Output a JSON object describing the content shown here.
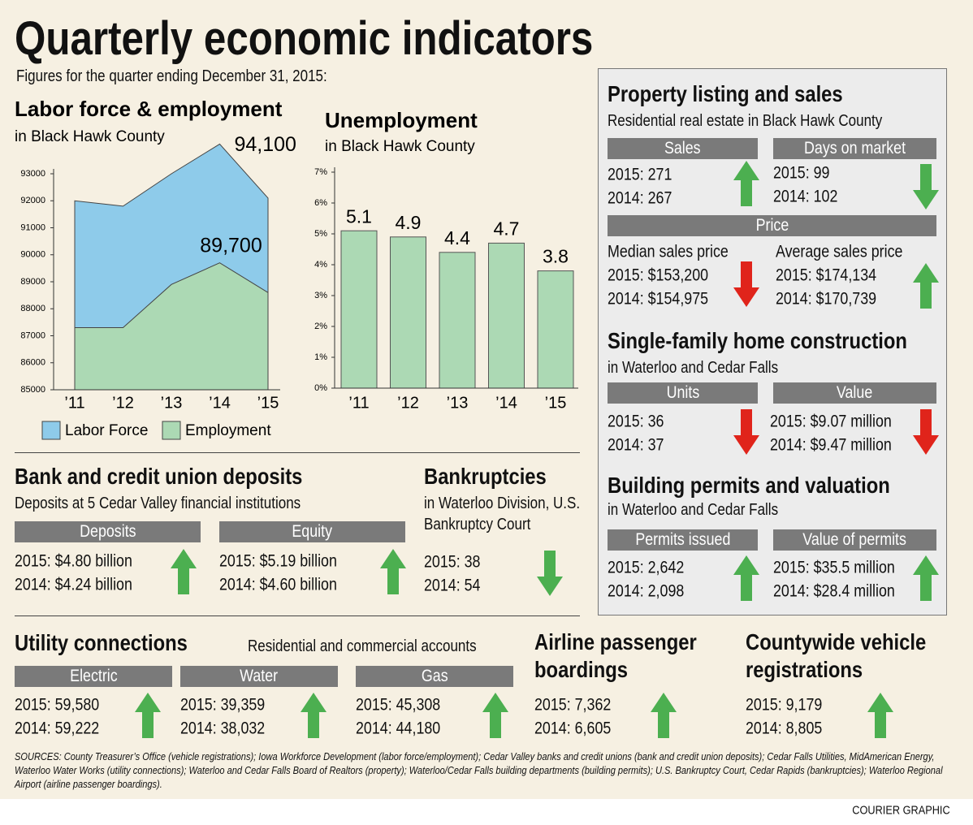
{
  "title": "Quarterly economic indicators",
  "subtitle": "Figures for the quarter ending December 31, 2015:",
  "chart_data": [
    {
      "type": "area",
      "title": "Labor force & employment",
      "subtitle": "in Black Hawk County",
      "categories": [
        "’11",
        "’12",
        "’13",
        "’14",
        "’15"
      ],
      "series": [
        {
          "name": "Labor Force",
          "color": "#8ecbea",
          "values": [
            92000,
            91800,
            93000,
            94100,
            92100
          ],
          "value_labels": [
            null,
            null,
            null,
            "94,100",
            null
          ]
        },
        {
          "name": "Employment",
          "color": "#acd9b4",
          "values": [
            87300,
            87300,
            88900,
            89700,
            88600
          ],
          "value_labels": [
            null,
            null,
            null,
            "89,700",
            null
          ]
        }
      ],
      "ylim": [
        85000,
        93000
      ],
      "yticks": [
        85000,
        86000,
        87000,
        88000,
        89000,
        90000,
        91000,
        92000,
        93000
      ]
    },
    {
      "type": "bar",
      "title": "Unemployment",
      "subtitle": "in Black Hawk County",
      "categories": [
        "’11",
        "’12",
        "’13",
        "’14",
        "’15"
      ],
      "values": [
        5.1,
        4.9,
        4.4,
        4.7,
        3.8
      ],
      "color": "#acd9b4",
      "ylim": [
        0,
        7
      ],
      "yticks": [
        {
          "value": 0,
          "label": "0%"
        },
        {
          "value": 1,
          "label": "1%"
        },
        {
          "value": 2,
          "label": "2%"
        },
        {
          "value": 3,
          "label": "3%"
        },
        {
          "value": 4,
          "label": "4%"
        },
        {
          "value": 5,
          "label": "5%"
        },
        {
          "value": 6,
          "label": "6%"
        },
        {
          "value": 7,
          "label": "7%"
        }
      ]
    }
  ],
  "property": {
    "title": "Property listing and sales",
    "subtitle": "Residential real estate in Black Hawk County",
    "sales": {
      "label": "Sales",
      "lines": [
        "2015: 271",
        "2014: 267"
      ]
    },
    "days": {
      "label": "Days on market",
      "lines": [
        "2015: 99",
        "2014: 102"
      ]
    },
    "price": "Price",
    "median": {
      "label": "Median sales price",
      "lines": [
        "2015: $153,200",
        "2014: $154,975"
      ]
    },
    "average": {
      "label": "Average sales price",
      "lines": [
        "2015: $174,134",
        "2014: $170,739"
      ]
    }
  },
  "construction": {
    "title": "Single-family home construction",
    "subtitle": "in Waterloo and Cedar Falls",
    "units": {
      "label": "Units",
      "lines": [
        "2015: 36",
        "2014: 37"
      ]
    },
    "value": {
      "label": "Value",
      "lines": [
        "2015: $9.07 million",
        "2014: $9.47 million"
      ]
    }
  },
  "permits": {
    "title": "Building permits and valuation",
    "subtitle": "in Waterloo and Cedar Falls",
    "issued": {
      "label": "Permits issued",
      "lines": [
        "2015: 2,642",
        "2014: 2,098"
      ]
    },
    "value": {
      "label": "Value of permits",
      "lines": [
        "2015: $35.5 million",
        "2014: $28.4 million"
      ]
    }
  },
  "deposits": {
    "title": "Bank and credit union deposits",
    "subtitle": "Deposits at 5 Cedar Valley financial institutions",
    "deposits": {
      "label": "Deposits",
      "lines": [
        "2015: $4.80 billion",
        "2014: $4.24 billion"
      ]
    },
    "equity": {
      "label": "Equity",
      "lines": [
        "2015: $5.19 billion",
        "2014: $4.60 billion"
      ]
    }
  },
  "bankruptcies": {
    "title": "Bankruptcies",
    "subtitle": "in Waterloo Division, U.S. Bankruptcy Court",
    "lines": [
      "2015: 38",
      "2014: 54"
    ]
  },
  "utility": {
    "title": "Utility connections",
    "subtitle": "Residential and commercial accounts",
    "electric": {
      "label": "Electric",
      "lines": [
        "2015: 59,580",
        "2014: 59,222"
      ]
    },
    "water": {
      "label": "Water",
      "lines": [
        "2015: 39,359",
        "2014: 38,032"
      ]
    },
    "gas": {
      "label": "Gas",
      "lines": [
        "2015: 45,308",
        "2014: 44,180"
      ]
    }
  },
  "airline": {
    "title": "Airline passenger boardings",
    "lines": [
      "2015: 7,362",
      "2014: 6,605"
    ]
  },
  "vehicles": {
    "title": "Countywide vehicle registrations",
    "lines": [
      "2015: 9,179",
      "2014: 8,805"
    ]
  },
  "sources": "SOURCES: County Treasurer’s Office (vehicle registrations); Iowa Workforce Development (labor force/employment); Cedar Valley banks and credit unions (bank and credit union deposits); Cedar Falls Utilities, MidAmerican Energy, Waterloo Water Works (utility connections); Waterloo and Cedar Falls Board of Realtors (property); Waterloo/Cedar Falls building departments (building permits); U.S. Bankruptcy Court, Cedar Rapids (bankruptcies); Waterloo Regional Airport (airline passenger boardings).",
  "credit": "COURIER GRAPHIC"
}
